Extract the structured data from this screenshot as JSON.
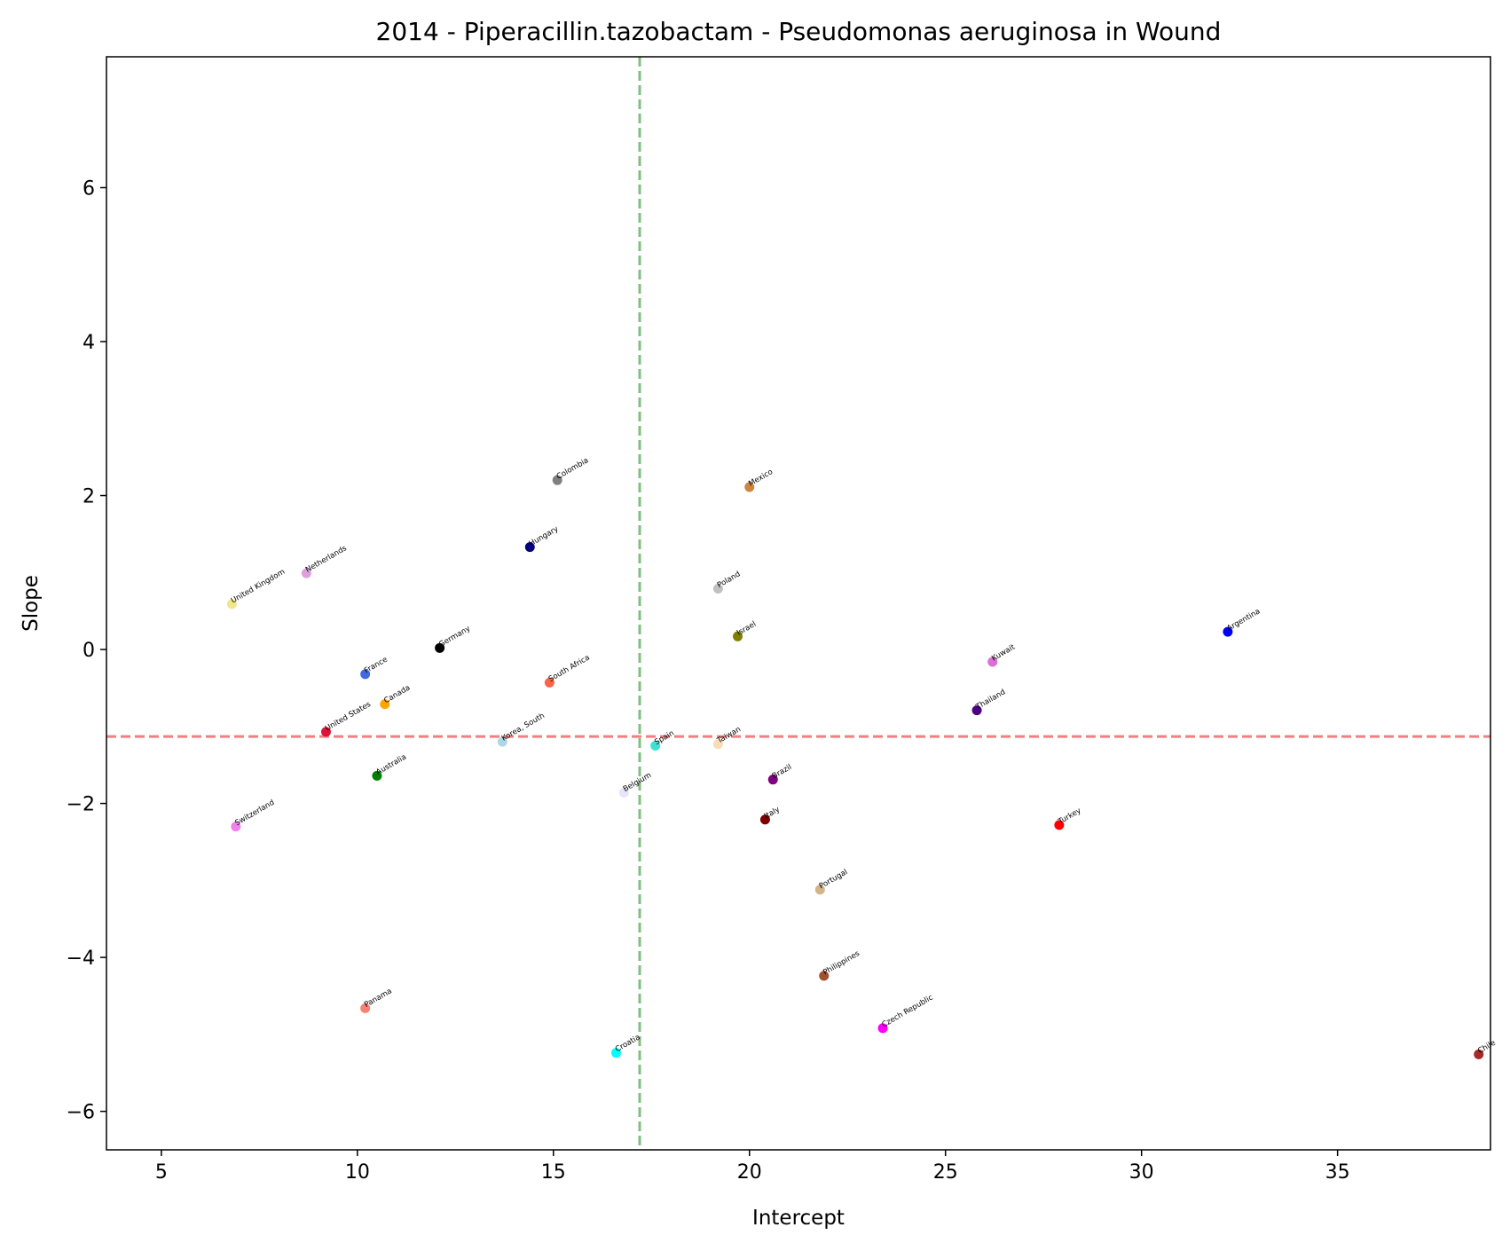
{
  "chart_data": {
    "type": "scatter",
    "title": "2014 - Piperacillin.tazobactam - Pseudomonas aeruginosa in Wound",
    "xlabel": "Intercept",
    "ylabel": "Slope",
    "xlim": [
      3.6,
      38.9
    ],
    "ylim": [
      -6.5,
      7.7
    ],
    "xticks": [
      5,
      10,
      15,
      20,
      25,
      30,
      35
    ],
    "yticks": [
      -6,
      -4,
      -2,
      0,
      2,
      4,
      6
    ],
    "xtick_labels": [
      "5",
      "10",
      "15",
      "20",
      "25",
      "30",
      "35"
    ],
    "ytick_labels": [
      "−6",
      "−4",
      "−2",
      "0",
      "2",
      "4",
      "6"
    ],
    "grid": false,
    "reference_lines": {
      "vertical": {
        "x": 17.2,
        "color": "#7fbf7f",
        "style": "dashed"
      },
      "horizontal": {
        "y": -1.13,
        "color": "#f08080",
        "style": "dashed"
      }
    },
    "points": [
      {
        "label": "Colombia",
        "x": 15.1,
        "y": 2.2,
        "color": "#808080"
      },
      {
        "label": "Mexico",
        "x": 20.0,
        "y": 2.11,
        "color": "#cd853f"
      },
      {
        "label": "Hungary",
        "x": 14.4,
        "y": 1.33,
        "color": "#000080"
      },
      {
        "label": "Netherlands",
        "x": 8.7,
        "y": 0.99,
        "color": "#dda0dd"
      },
      {
        "label": "United Kingdom",
        "x": 6.8,
        "y": 0.59,
        "color": "#f0e68c"
      },
      {
        "label": "Poland",
        "x": 19.2,
        "y": 0.79,
        "color": "#c0c0c0"
      },
      {
        "label": "Israel",
        "x": 19.7,
        "y": 0.17,
        "color": "#808000"
      },
      {
        "label": "Argentina",
        "x": 32.2,
        "y": 0.23,
        "color": "#0000ff"
      },
      {
        "label": "Germany",
        "x": 12.1,
        "y": 0.02,
        "color": "#000000"
      },
      {
        "label": "Kuwait",
        "x": 26.2,
        "y": -0.16,
        "color": "#da70d6"
      },
      {
        "label": "France",
        "x": 10.2,
        "y": -0.32,
        "color": "#4169e1"
      },
      {
        "label": "South Africa",
        "x": 14.9,
        "y": -0.43,
        "color": "#ff6347"
      },
      {
        "label": "Canada",
        "x": 10.7,
        "y": -0.71,
        "color": "#ffa500"
      },
      {
        "label": "Thailand",
        "x": 25.8,
        "y": -0.79,
        "color": "#4b0082"
      },
      {
        "label": "United States",
        "x": 9.2,
        "y": -1.07,
        "color": "#dc143c"
      },
      {
        "label": "Korea, South",
        "x": 13.7,
        "y": -1.2,
        "color": "#add8e6"
      },
      {
        "label": "Spain",
        "x": 17.6,
        "y": -1.25,
        "color": "#40e0d0"
      },
      {
        "label": "Taiwan",
        "x": 19.2,
        "y": -1.23,
        "color": "#f5deb3"
      },
      {
        "label": "Australia",
        "x": 10.5,
        "y": -1.64,
        "color": "#008000"
      },
      {
        "label": "Brazil",
        "x": 20.6,
        "y": -1.69,
        "color": "#800080"
      },
      {
        "label": "Belgium",
        "x": 16.8,
        "y": -1.86,
        "color": "#e6e6fa"
      },
      {
        "label": "Italy",
        "x": 20.4,
        "y": -2.21,
        "color": "#800000"
      },
      {
        "label": "Switzerland",
        "x": 6.9,
        "y": -2.3,
        "color": "#ee82ee"
      },
      {
        "label": "Turkey",
        "x": 27.9,
        "y": -2.28,
        "color": "#ff0000"
      },
      {
        "label": "Portugal",
        "x": 21.8,
        "y": -3.12,
        "color": "#d2b48c"
      },
      {
        "label": "Philippines",
        "x": 21.9,
        "y": -4.24,
        "color": "#a0522d"
      },
      {
        "label": "Panama",
        "x": 10.2,
        "y": -4.66,
        "color": "#fa8072"
      },
      {
        "label": "Czech Republic",
        "x": 23.4,
        "y": -4.92,
        "color": "#ff00ff"
      },
      {
        "label": "Croatia",
        "x": 16.6,
        "y": -5.24,
        "color": "#00ffff"
      },
      {
        "label": "Chile",
        "x": 38.6,
        "y": -5.26,
        "color": "#a52a2a"
      }
    ]
  }
}
